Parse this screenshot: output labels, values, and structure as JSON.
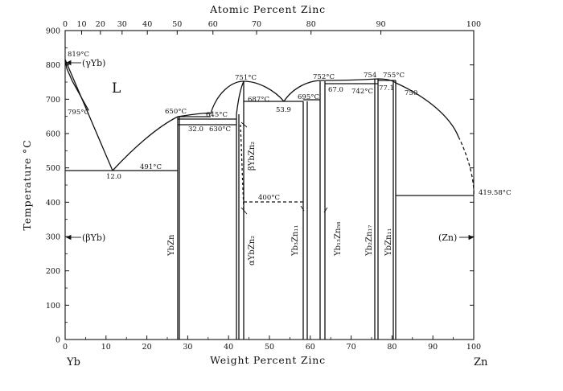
{
  "chart_data": {
    "type": "phase-diagram",
    "xlabel_top": "Atomic Percent Zinc",
    "xlabel_bottom": "Weight Percent Zinc",
    "ylabel": "Temperature °C",
    "left_component": "Yb",
    "right_component": "Zn",
    "bottom_ticks": [
      "0",
      "10",
      "20",
      "30",
      "40",
      "50",
      "60",
      "70",
      "80",
      "90",
      "100"
    ],
    "top_ticks": [
      "0",
      "10",
      "20",
      "30",
      "40",
      "50",
      "60",
      "70",
      "80",
      "90",
      "100"
    ],
    "y_ticks": [
      "0",
      "100",
      "200",
      "300",
      "400",
      "500",
      "600",
      "700",
      "800",
      "900"
    ],
    "xlim_wt": [
      0,
      100
    ],
    "ylim": [
      0,
      900
    ],
    "phase_labels": {
      "liquid": "L",
      "gamma_yb": "(γYb)",
      "beta_yb": "(βYb)",
      "zn": "(Zn)",
      "ybzn": "YbZn",
      "beta_ybzn2": "βYbZn₂",
      "alpha_ybzn2": "αYbZn₂",
      "yb3zn11": "Yb₃Zn₁₁",
      "yb13zn58": "Yb₁₃Zn₅₈",
      "yb2zn17": "Yb₂Zn₁₇",
      "ybzn11": "YbZn₁₁"
    },
    "annotations": [
      {
        "text": "819°C"
      },
      {
        "text": "795°C"
      },
      {
        "text": "12.0"
      },
      {
        "text": "491°C"
      },
      {
        "text": "650°C"
      },
      {
        "text": "32.0"
      },
      {
        "text": "645°C"
      },
      {
        "text": "630°C"
      },
      {
        "text": "751°C"
      },
      {
        "text": "687°C"
      },
      {
        "text": "53.9"
      },
      {
        "text": "695°C"
      },
      {
        "text": "752°C"
      },
      {
        "text": "67.0"
      },
      {
        "text": "754"
      },
      {
        "text": "742°C"
      },
      {
        "text": "755°C"
      },
      {
        "text": "77.1"
      },
      {
        "text": "750"
      },
      {
        "text": "400°C"
      },
      {
        "text": "419.58°C"
      }
    ]
  }
}
